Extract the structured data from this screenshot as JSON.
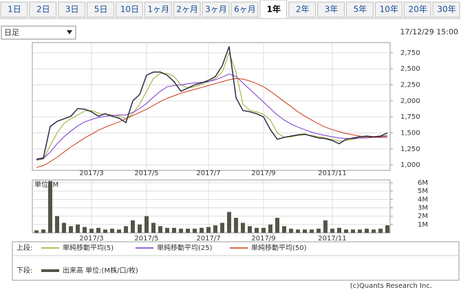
{
  "tabs": [
    "1日",
    "2日",
    "3日",
    "5日",
    "10日",
    "1ヶ月",
    "2ヶ月",
    "3ヶ月",
    "6ヶ月",
    "1年",
    "2年",
    "3年",
    "5年",
    "10年",
    "20年",
    "30年"
  ],
  "active_tab": 9,
  "period_select": "日足",
  "timestamp": "17/12/29 15:00",
  "footer": "(c)Quants Research Inc.",
  "chart_data": [
    {
      "type": "line",
      "legend_title": "上段:",
      "categories": [
        null,
        null,
        null,
        null,
        null,
        null,
        null,
        null,
        "2017/3",
        null,
        null,
        null,
        null,
        null,
        null,
        null,
        "2017/5",
        null,
        null,
        null,
        null,
        null,
        null,
        null,
        null,
        "2017/7",
        null,
        null,
        null,
        null,
        null,
        null,
        null,
        "2017/9",
        null,
        null,
        null,
        null,
        null,
        null,
        null,
        null,
        null,
        "2017/11",
        null,
        null,
        null,
        null,
        null,
        null,
        null,
        null
      ],
      "values": [
        1090,
        1110,
        1600,
        1680,
        1720,
        1760,
        1880,
        1870,
        1830,
        1760,
        1800,
        1760,
        1730,
        1660,
        2000,
        2100,
        2400,
        2450,
        2450,
        2400,
        2300,
        2150,
        2200,
        2250,
        2280,
        2320,
        2380,
        2550,
        2850,
        2050,
        1850,
        1830,
        1800,
        1750,
        1550,
        1400,
        1430,
        1450,
        1470,
        1480,
        1450,
        1420,
        1410,
        1380,
        1330,
        1400,
        1420,
        1440,
        1450,
        1440,
        1450,
        1500
      ],
      "color": "#2a2a44",
      "series": [
        {
          "name": "単純移動平均(5)",
          "color": "#99aa22",
          "values": [
            1070,
            1090,
            1300,
            1500,
            1650,
            1720,
            1780,
            1840,
            1850,
            1810,
            1790,
            1780,
            1760,
            1720,
            1800,
            1950,
            2150,
            2350,
            2430,
            2430,
            2380,
            2250,
            2200,
            2220,
            2260,
            2300,
            2350,
            2450,
            2750,
            2450,
            1950,
            1850,
            1830,
            1790,
            1700,
            1500,
            1430,
            1440,
            1460,
            1470,
            1460,
            1440,
            1420,
            1400,
            1370,
            1380,
            1400,
            1420,
            1440,
            1440,
            1450,
            1460
          ]
        },
        {
          "name": "単純移動平均(25)",
          "color": "#7733cc",
          "values": [
            1080,
            1100,
            1200,
            1330,
            1440,
            1530,
            1610,
            1670,
            1710,
            1740,
            1760,
            1770,
            1780,
            1780,
            1820,
            1880,
            1960,
            2060,
            2150,
            2220,
            2240,
            2250,
            2270,
            2280,
            2290,
            2300,
            2330,
            2370,
            2420,
            2380,
            2280,
            2180,
            2080,
            1980,
            1880,
            1780,
            1700,
            1640,
            1590,
            1550,
            1510,
            1480,
            1460,
            1440,
            1420,
            1410,
            1410,
            1420,
            1420,
            1430,
            1440,
            1450
          ]
        },
        {
          "name": "単純移動平均(50)",
          "color": "#cc3311",
          "values": [
            960,
            990,
            1050,
            1120,
            1200,
            1280,
            1350,
            1420,
            1480,
            1540,
            1590,
            1630,
            1670,
            1720,
            1770,
            1820,
            1870,
            1930,
            1990,
            2040,
            2080,
            2120,
            2150,
            2180,
            2210,
            2240,
            2270,
            2300,
            2330,
            2350,
            2340,
            2310,
            2270,
            2220,
            2150,
            2070,
            1990,
            1910,
            1830,
            1760,
            1700,
            1640,
            1590,
            1550,
            1520,
            1490,
            1470,
            1450,
            1440,
            1430,
            1430,
            1430
          ]
        }
      ],
      "ylim": [
        915,
        2910
      ],
      "yticks": [
        {
          "value": 1000,
          "label": "1,000"
        },
        {
          "value": 1250,
          "label": "1,250"
        },
        {
          "value": 1500,
          "label": "1,500"
        },
        {
          "value": 1750,
          "label": "1,750"
        },
        {
          "value": 2000,
          "label": "2,000"
        },
        {
          "value": 2250,
          "label": "2,250"
        },
        {
          "value": 2500,
          "label": "2,500"
        },
        {
          "value": 2750,
          "label": "2,750"
        }
      ],
      "grid": true
    },
    {
      "type": "bar",
      "legend_title": "下段:",
      "ylabel": "単位: M",
      "name": "出来高 単位:(M株/口/枚)",
      "categories": [
        null,
        null,
        null,
        null,
        null,
        null,
        null,
        null,
        "2017/3",
        null,
        null,
        null,
        null,
        null,
        null,
        null,
        "2017/5",
        null,
        null,
        null,
        null,
        null,
        null,
        null,
        null,
        "2017/7",
        null,
        null,
        null,
        null,
        null,
        null,
        null,
        "2017/9",
        null,
        null,
        null,
        null,
        null,
        null,
        null,
        null,
        null,
        "2017/11",
        null,
        null,
        null,
        null,
        null,
        null,
        null,
        null
      ],
      "values": [
        0.3,
        0.4,
        6.2,
        2.0,
        1.2,
        0.8,
        1.0,
        0.7,
        0.5,
        0.6,
        0.4,
        0.5,
        0.4,
        0.8,
        1.5,
        1.0,
        2.0,
        1.2,
        0.8,
        0.6,
        0.6,
        0.5,
        0.5,
        0.5,
        0.6,
        0.7,
        0.9,
        1.2,
        2.5,
        1.8,
        1.2,
        0.8,
        0.6,
        0.6,
        1.0,
        1.8,
        0.8,
        0.5,
        0.4,
        0.4,
        0.4,
        0.5,
        1.5,
        0.5,
        0.6,
        0.4,
        0.4,
        0.4,
        0.5,
        0.4,
        0.5,
        0.9
      ],
      "color": "#555548",
      "ylim": [
        0,
        6.33
      ],
      "yticks": [
        {
          "value": 1,
          "label": "1M"
        },
        {
          "value": 2,
          "label": "2M"
        },
        {
          "value": 3,
          "label": "3M"
        },
        {
          "value": 4,
          "label": "4M"
        },
        {
          "value": 5,
          "label": "5M"
        },
        {
          "value": 6,
          "label": "6M"
        }
      ],
      "grid": true
    }
  ]
}
